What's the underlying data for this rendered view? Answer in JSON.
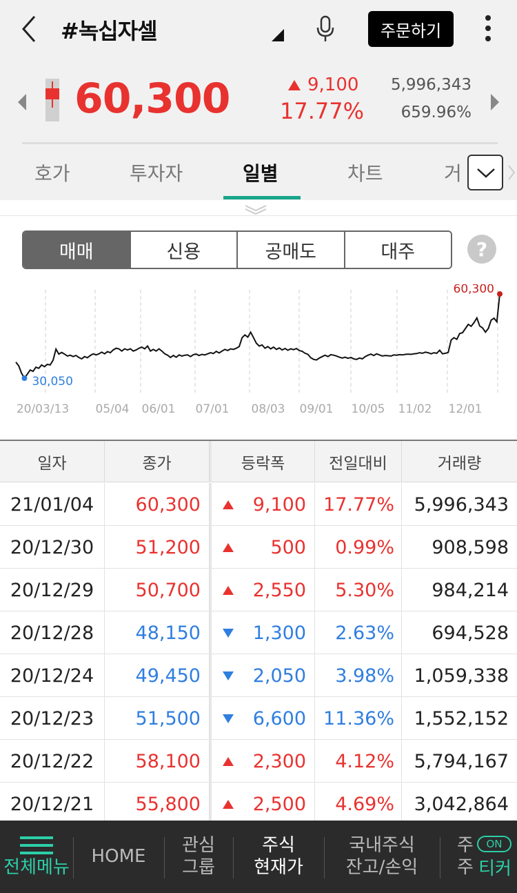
{
  "header": {
    "title": "#녹십자셀",
    "order_button": "주문하기"
  },
  "quote": {
    "price": "60,300",
    "change_amount": "9,100",
    "change_percent": "17.77%",
    "volume": "5,996,343",
    "volume_ratio": "659.96%"
  },
  "tabs": [
    {
      "label": "호가",
      "active": false
    },
    {
      "label": "투자자",
      "active": false
    },
    {
      "label": "일별",
      "active": true
    },
    {
      "label": "차트",
      "active": false
    },
    {
      "label": "거",
      "active": false
    }
  ],
  "segments": [
    {
      "label": "매매",
      "active": true
    },
    {
      "label": "신용",
      "active": false
    },
    {
      "label": "공매도",
      "active": false
    },
    {
      "label": "대주",
      "active": false
    }
  ],
  "help_label": "?",
  "chart_data": {
    "type": "line",
    "x_ticks": [
      "20/03/13",
      "05/04",
      "06/01",
      "07/01",
      "08/03",
      "09/01",
      "10/05",
      "11/02",
      "12/01"
    ],
    "min_label": "30,050",
    "max_label": "60,300",
    "min_value": 30050,
    "max_value": 60300,
    "grid": true,
    "line_color": "#111111",
    "min_color": "#2f7ee0",
    "max_color": "#c8201e",
    "values": [
      35800,
      34500,
      31800,
      30050,
      31500,
      33000,
      32500,
      34000,
      33600,
      34800,
      34200,
      35000,
      34800,
      36500,
      40500,
      38700,
      39300,
      38700,
      38000,
      38300,
      37800,
      38200,
      37500,
      37000,
      37800,
      37400,
      38200,
      38800,
      38400,
      38800,
      39400,
      38800,
      39600,
      39200,
      40200,
      40800,
      40600,
      39800,
      40600,
      40200,
      40600,
      39800,
      40200,
      40800,
      41200,
      40600,
      41600,
      39800,
      40400,
      39800,
      40600,
      39800,
      38800,
      38300,
      37500,
      38200,
      37600,
      38400,
      38000,
      38300,
      38400,
      37800,
      38500,
      38700,
      38200,
      38600,
      38400,
      38800,
      39200,
      38900,
      39700,
      39100,
      39800,
      40400,
      40000,
      40600,
      40400,
      40800,
      41400,
      44600,
      45600,
      44800,
      46600,
      44600,
      42600,
      41600,
      42000,
      40800,
      41400,
      40600,
      41200,
      40400,
      40900,
      40200,
      40700,
      40100,
      40600,
      40300,
      40700,
      40000,
      39700,
      39000,
      38600,
      37400,
      36800,
      36600,
      37300,
      37800,
      38300,
      37800,
      38500,
      38300,
      38000,
      37600,
      37300,
      37600,
      37200,
      37500,
      37000,
      36800,
      37300,
      37000,
      37800,
      38300,
      38700,
      38200,
      38800,
      38400,
      38000,
      38200,
      38100,
      38000,
      38400,
      38300,
      38500,
      38400,
      38600,
      38700,
      38600,
      38800,
      38900,
      39200,
      39000,
      39400,
      39200,
      38800,
      39200,
      39000,
      40100,
      38800,
      39000,
      39300,
      43700,
      44600,
      44000,
      46100,
      46400,
      47900,
      49400,
      48700,
      50000,
      51700,
      48800,
      48100,
      46600,
      47900,
      50900,
      51600,
      50300,
      60300
    ]
  },
  "table": {
    "headers": [
      "일자",
      "종가",
      "등락폭",
      "전일대비",
      "거래량"
    ],
    "rows": [
      {
        "date": "21/01/04",
        "close": "60,300",
        "dir": "up",
        "diff": "9,100",
        "pct": "17.77%",
        "volume": "5,996,343"
      },
      {
        "date": "20/12/30",
        "close": "51,200",
        "dir": "up",
        "diff": "500",
        "pct": "0.99%",
        "volume": "908,598"
      },
      {
        "date": "20/12/29",
        "close": "50,700",
        "dir": "up",
        "diff": "2,550",
        "pct": "5.30%",
        "volume": "984,214"
      },
      {
        "date": "20/12/28",
        "close": "48,150",
        "dir": "down",
        "diff": "1,300",
        "pct": "2.63%",
        "volume": "694,528"
      },
      {
        "date": "20/12/24",
        "close": "49,450",
        "dir": "down",
        "diff": "2,050",
        "pct": "3.98%",
        "volume": "1,059,338"
      },
      {
        "date": "20/12/23",
        "close": "51,500",
        "dir": "down",
        "diff": "6,600",
        "pct": "11.36%",
        "volume": "1,552,152"
      },
      {
        "date": "20/12/22",
        "close": "58,100",
        "dir": "up",
        "diff": "2,300",
        "pct": "4.12%",
        "volume": "5,794,167"
      },
      {
        "date": "20/12/21",
        "close": "55,800",
        "dir": "up",
        "diff": "2,500",
        "pct": "4.69%",
        "volume": "3,042,864"
      }
    ]
  },
  "bottom_nav": {
    "menu": "전체메뉴",
    "home": "HOME",
    "watch_1": "관심",
    "watch_2": "그룹",
    "stock_1": "주식",
    "stock_2": "현재가",
    "balance_1": "국내주식",
    "balance_2": "잔고/손익",
    "cut_1": "주",
    "cut_2": "주",
    "on_badge": "ON",
    "ticker": "티커"
  },
  "colors": {
    "up": "#e8322f",
    "down": "#2f7ee0",
    "accent": "#1aa58a",
    "nav_bg": "#2b2b2b",
    "nav_accent": "#2ccfa8"
  }
}
